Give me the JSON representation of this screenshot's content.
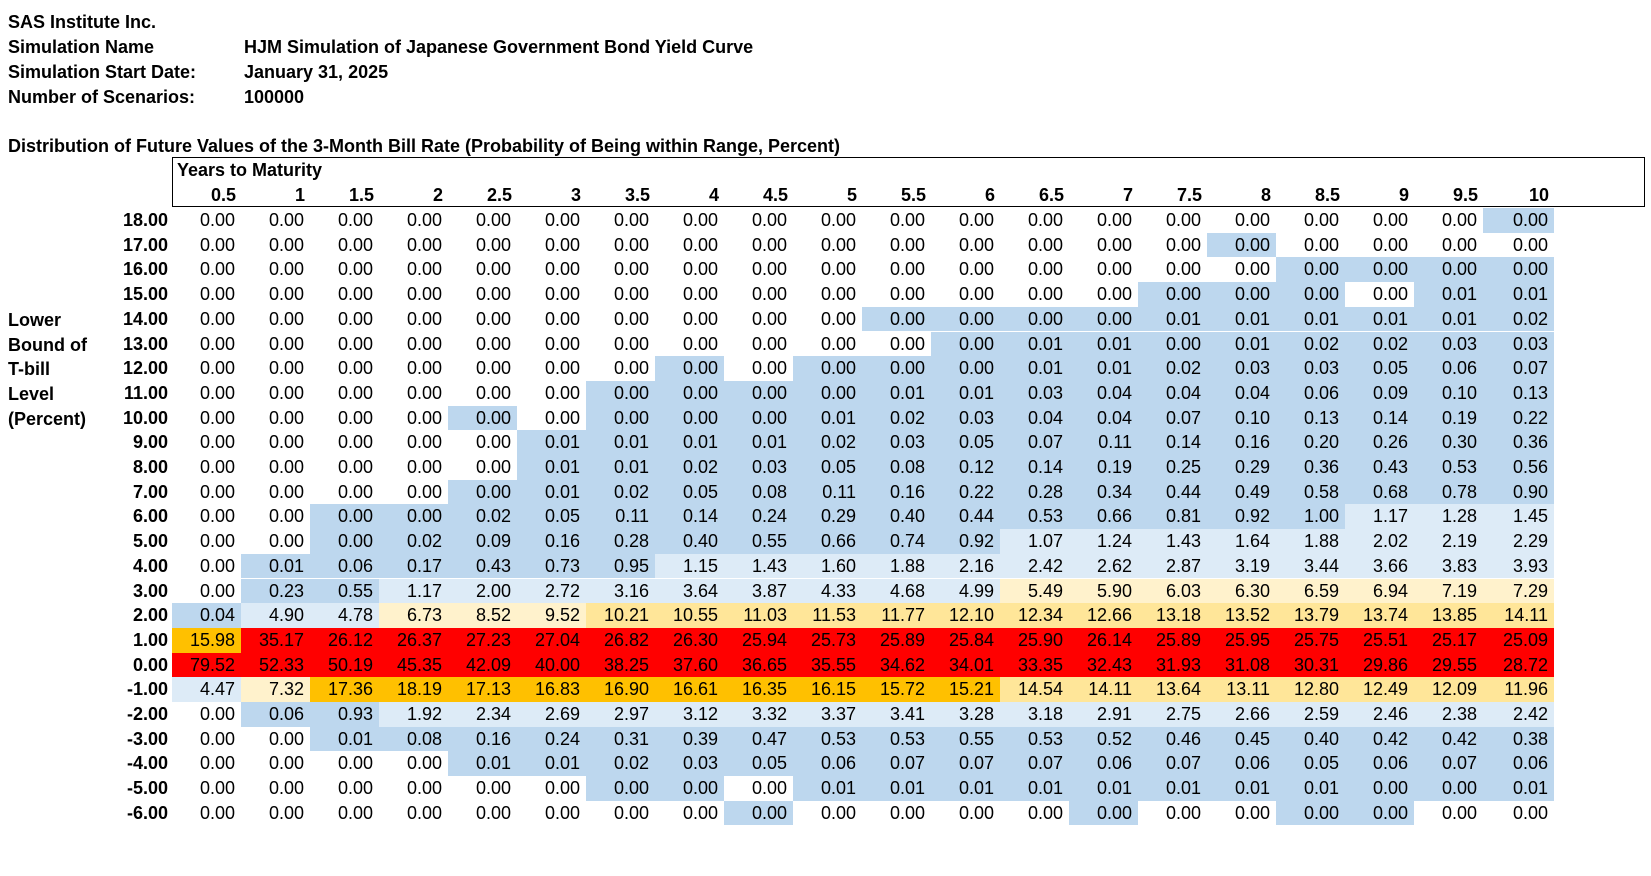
{
  "header": {
    "company": "SAS Institute Inc.",
    "simulation_name_label": "Simulation Name",
    "simulation_name": "HJM Simulation of Japanese Government Bond Yield Curve",
    "start_date_label": "Simulation Start Date:",
    "start_date": "January 31, 2025",
    "scenarios_label": "Number of Scenarios:",
    "scenarios": "100000"
  },
  "table": {
    "title": "Distribution of Future Values of the 3-Month Bill Rate (Probability of Being within Range, Percent)",
    "column_group_label": "Years to Maturity",
    "row_axis_label": [
      "Lower",
      "Bound of",
      "T-bill",
      "Level",
      "(Percent)"
    ],
    "columns": [
      "0.5",
      "1",
      "1.5",
      "2",
      "2.5",
      "3",
      "3.5",
      "4",
      "4.5",
      "5",
      "5.5",
      "6",
      "6.5",
      "7",
      "7.5",
      "8",
      "8.5",
      "9",
      "9.5",
      "10"
    ],
    "rows": [
      {
        "bound": "18.00",
        "values": [
          "0.00",
          "0.00",
          "0.00",
          "0.00",
          "0.00",
          "0.00",
          "0.00",
          "0.00",
          "0.00",
          "0.00",
          "0.00",
          "0.00",
          "0.00",
          "0.00",
          "0.00",
          "0.00",
          "0.00",
          "0.00",
          "0.00",
          "0.00"
        ],
        "tiers": [
          0,
          0,
          0,
          0,
          0,
          0,
          0,
          0,
          0,
          0,
          0,
          0,
          0,
          0,
          0,
          0,
          0,
          0,
          0,
          1
        ]
      },
      {
        "bound": "17.00",
        "values": [
          "0.00",
          "0.00",
          "0.00",
          "0.00",
          "0.00",
          "0.00",
          "0.00",
          "0.00",
          "0.00",
          "0.00",
          "0.00",
          "0.00",
          "0.00",
          "0.00",
          "0.00",
          "0.00",
          "0.00",
          "0.00",
          "0.00",
          "0.00"
        ],
        "tiers": [
          0,
          0,
          0,
          0,
          0,
          0,
          0,
          0,
          0,
          0,
          0,
          0,
          0,
          0,
          0,
          1,
          0,
          0,
          0,
          0
        ]
      },
      {
        "bound": "16.00",
        "values": [
          "0.00",
          "0.00",
          "0.00",
          "0.00",
          "0.00",
          "0.00",
          "0.00",
          "0.00",
          "0.00",
          "0.00",
          "0.00",
          "0.00",
          "0.00",
          "0.00",
          "0.00",
          "0.00",
          "0.00",
          "0.00",
          "0.00",
          "0.00"
        ],
        "tiers": [
          0,
          0,
          0,
          0,
          0,
          0,
          0,
          0,
          0,
          0,
          0,
          0,
          0,
          0,
          0,
          0,
          1,
          1,
          1,
          1
        ]
      },
      {
        "bound": "15.00",
        "values": [
          "0.00",
          "0.00",
          "0.00",
          "0.00",
          "0.00",
          "0.00",
          "0.00",
          "0.00",
          "0.00",
          "0.00",
          "0.00",
          "0.00",
          "0.00",
          "0.00",
          "0.00",
          "0.00",
          "0.00",
          "0.00",
          "0.01",
          "0.01"
        ],
        "tiers": [
          0,
          0,
          0,
          0,
          0,
          0,
          0,
          0,
          0,
          0,
          0,
          0,
          0,
          0,
          1,
          1,
          1,
          0,
          1,
          1
        ]
      },
      {
        "bound": "14.00",
        "values": [
          "0.00",
          "0.00",
          "0.00",
          "0.00",
          "0.00",
          "0.00",
          "0.00",
          "0.00",
          "0.00",
          "0.00",
          "0.00",
          "0.00",
          "0.00",
          "0.00",
          "0.01",
          "0.01",
          "0.01",
          "0.01",
          "0.01",
          "0.02"
        ],
        "tiers": [
          0,
          0,
          0,
          0,
          0,
          0,
          0,
          0,
          0,
          0,
          1,
          1,
          1,
          1,
          1,
          1,
          1,
          1,
          1,
          1
        ]
      },
      {
        "bound": "13.00",
        "values": [
          "0.00",
          "0.00",
          "0.00",
          "0.00",
          "0.00",
          "0.00",
          "0.00",
          "0.00",
          "0.00",
          "0.00",
          "0.00",
          "0.00",
          "0.01",
          "0.01",
          "0.00",
          "0.01",
          "0.02",
          "0.02",
          "0.03",
          "0.03"
        ],
        "tiers": [
          0,
          0,
          0,
          0,
          0,
          0,
          0,
          0,
          0,
          0,
          0,
          1,
          1,
          1,
          1,
          1,
          1,
          1,
          1,
          1
        ]
      },
      {
        "bound": "12.00",
        "values": [
          "0.00",
          "0.00",
          "0.00",
          "0.00",
          "0.00",
          "0.00",
          "0.00",
          "0.00",
          "0.00",
          "0.00",
          "0.00",
          "0.00",
          "0.01",
          "0.01",
          "0.02",
          "0.03",
          "0.03",
          "0.05",
          "0.06",
          "0.07"
        ],
        "tiers": [
          0,
          0,
          0,
          0,
          0,
          0,
          0,
          1,
          0,
          1,
          1,
          1,
          1,
          1,
          1,
          1,
          1,
          1,
          1,
          1
        ]
      },
      {
        "bound": "11.00",
        "values": [
          "0.00",
          "0.00",
          "0.00",
          "0.00",
          "0.00",
          "0.00",
          "0.00",
          "0.00",
          "0.00",
          "0.00",
          "0.01",
          "0.01",
          "0.03",
          "0.04",
          "0.04",
          "0.04",
          "0.06",
          "0.09",
          "0.10",
          "0.13"
        ],
        "tiers": [
          0,
          0,
          0,
          0,
          0,
          0,
          1,
          1,
          1,
          1,
          1,
          1,
          1,
          1,
          1,
          1,
          1,
          1,
          1,
          1
        ]
      },
      {
        "bound": "10.00",
        "values": [
          "0.00",
          "0.00",
          "0.00",
          "0.00",
          "0.00",
          "0.00",
          "0.00",
          "0.00",
          "0.00",
          "0.01",
          "0.02",
          "0.03",
          "0.04",
          "0.04",
          "0.07",
          "0.10",
          "0.13",
          "0.14",
          "0.19",
          "0.22"
        ],
        "tiers": [
          0,
          0,
          0,
          0,
          1,
          0,
          1,
          1,
          1,
          1,
          1,
          1,
          1,
          1,
          1,
          1,
          1,
          1,
          1,
          1
        ]
      },
      {
        "bound": "9.00",
        "values": [
          "0.00",
          "0.00",
          "0.00",
          "0.00",
          "0.00",
          "0.01",
          "0.01",
          "0.01",
          "0.01",
          "0.02",
          "0.03",
          "0.05",
          "0.07",
          "0.11",
          "0.14",
          "0.16",
          "0.20",
          "0.26",
          "0.30",
          "0.36"
        ],
        "tiers": [
          0,
          0,
          0,
          0,
          0,
          1,
          1,
          1,
          1,
          1,
          1,
          1,
          1,
          1,
          1,
          1,
          1,
          1,
          1,
          1
        ]
      },
      {
        "bound": "8.00",
        "values": [
          "0.00",
          "0.00",
          "0.00",
          "0.00",
          "0.00",
          "0.01",
          "0.01",
          "0.02",
          "0.03",
          "0.05",
          "0.08",
          "0.12",
          "0.14",
          "0.19",
          "0.25",
          "0.29",
          "0.36",
          "0.43",
          "0.53",
          "0.56"
        ],
        "tiers": [
          0,
          0,
          0,
          0,
          0,
          1,
          1,
          1,
          1,
          1,
          1,
          1,
          1,
          1,
          1,
          1,
          1,
          1,
          1,
          1
        ]
      },
      {
        "bound": "7.00",
        "values": [
          "0.00",
          "0.00",
          "0.00",
          "0.00",
          "0.00",
          "0.01",
          "0.02",
          "0.05",
          "0.08",
          "0.11",
          "0.16",
          "0.22",
          "0.28",
          "0.34",
          "0.44",
          "0.49",
          "0.58",
          "0.68",
          "0.78",
          "0.90"
        ],
        "tiers": [
          0,
          0,
          0,
          0,
          1,
          1,
          1,
          1,
          1,
          1,
          1,
          1,
          1,
          1,
          1,
          1,
          1,
          1,
          1,
          1
        ]
      },
      {
        "bound": "6.00",
        "values": [
          "0.00",
          "0.00",
          "0.00",
          "0.00",
          "0.02",
          "0.05",
          "0.11",
          "0.14",
          "0.24",
          "0.29",
          "0.40",
          "0.44",
          "0.53",
          "0.66",
          "0.81",
          "0.92",
          "1.00",
          "1.17",
          "1.28",
          "1.45"
        ],
        "tiers": [
          0,
          0,
          1,
          1,
          1,
          1,
          1,
          1,
          1,
          1,
          1,
          1,
          1,
          1,
          1,
          1,
          1,
          2,
          2,
          2
        ]
      },
      {
        "bound": "5.00",
        "values": [
          "0.00",
          "0.00",
          "0.00",
          "0.02",
          "0.09",
          "0.16",
          "0.28",
          "0.40",
          "0.55",
          "0.66",
          "0.74",
          "0.92",
          "1.07",
          "1.24",
          "1.43",
          "1.64",
          "1.88",
          "2.02",
          "2.19",
          "2.29"
        ],
        "tiers": [
          0,
          0,
          1,
          1,
          1,
          1,
          1,
          1,
          1,
          1,
          1,
          1,
          2,
          2,
          2,
          2,
          2,
          2,
          2,
          2
        ]
      },
      {
        "bound": "4.00",
        "values": [
          "0.00",
          "0.01",
          "0.06",
          "0.17",
          "0.43",
          "0.73",
          "0.95",
          "1.15",
          "1.43",
          "1.60",
          "1.88",
          "2.16",
          "2.42",
          "2.62",
          "2.87",
          "3.19",
          "3.44",
          "3.66",
          "3.83",
          "3.93"
        ],
        "tiers": [
          0,
          1,
          1,
          1,
          1,
          1,
          1,
          2,
          2,
          2,
          2,
          2,
          2,
          2,
          2,
          2,
          2,
          2,
          2,
          2
        ]
      },
      {
        "bound": "3.00",
        "values": [
          "0.00",
          "0.23",
          "0.55",
          "1.17",
          "2.00",
          "2.72",
          "3.16",
          "3.64",
          "3.87",
          "4.33",
          "4.68",
          "4.99",
          "5.49",
          "5.90",
          "6.03",
          "6.30",
          "6.59",
          "6.94",
          "7.19",
          "7.29"
        ],
        "tiers": [
          0,
          1,
          1,
          2,
          2,
          2,
          2,
          2,
          2,
          2,
          2,
          2,
          3,
          3,
          3,
          3,
          3,
          3,
          3,
          3
        ]
      },
      {
        "bound": "2.00",
        "values": [
          "0.04",
          "4.90",
          "4.78",
          "6.73",
          "8.52",
          "9.52",
          "10.21",
          "10.55",
          "11.03",
          "11.53",
          "11.77",
          "12.10",
          "12.34",
          "12.66",
          "13.18",
          "13.52",
          "13.79",
          "13.74",
          "13.85",
          "14.11"
        ],
        "tiers": [
          1,
          2,
          2,
          3,
          3,
          3,
          4,
          4,
          4,
          4,
          4,
          4,
          4,
          4,
          4,
          4,
          4,
          4,
          4,
          4
        ]
      },
      {
        "bound": "1.00",
        "values": [
          "15.98",
          "35.17",
          "26.12",
          "26.37",
          "27.23",
          "27.04",
          "26.82",
          "26.30",
          "25.94",
          "25.73",
          "25.89",
          "25.84",
          "25.90",
          "26.14",
          "25.89",
          "25.95",
          "25.75",
          "25.51",
          "25.17",
          "25.09"
        ],
        "tiers": [
          5,
          6,
          6,
          6,
          6,
          6,
          6,
          6,
          6,
          6,
          6,
          6,
          6,
          6,
          6,
          6,
          6,
          6,
          6,
          6
        ]
      },
      {
        "bound": "0.00",
        "values": [
          "79.52",
          "52.33",
          "50.19",
          "45.35",
          "42.09",
          "40.00",
          "38.25",
          "37.60",
          "36.65",
          "35.55",
          "34.62",
          "34.01",
          "33.35",
          "32.43",
          "31.93",
          "31.08",
          "30.31",
          "29.86",
          "29.55",
          "28.72"
        ],
        "tiers": [
          6,
          6,
          6,
          6,
          6,
          6,
          6,
          6,
          6,
          6,
          6,
          6,
          6,
          6,
          6,
          6,
          6,
          6,
          6,
          6
        ]
      },
      {
        "bound": "-1.00",
        "values": [
          "4.47",
          "7.32",
          "17.36",
          "18.19",
          "17.13",
          "16.83",
          "16.90",
          "16.61",
          "16.35",
          "16.15",
          "15.72",
          "15.21",
          "14.54",
          "14.11",
          "13.64",
          "13.11",
          "12.80",
          "12.49",
          "12.09",
          "11.96"
        ],
        "tiers": [
          2,
          3,
          5,
          5,
          5,
          5,
          5,
          5,
          5,
          5,
          5,
          5,
          4,
          4,
          4,
          4,
          4,
          4,
          4,
          4
        ]
      },
      {
        "bound": "-2.00",
        "values": [
          "0.00",
          "0.06",
          "0.93",
          "1.92",
          "2.34",
          "2.69",
          "2.97",
          "3.12",
          "3.32",
          "3.37",
          "3.41",
          "3.28",
          "3.18",
          "2.91",
          "2.75",
          "2.66",
          "2.59",
          "2.46",
          "2.38",
          "2.42"
        ],
        "tiers": [
          0,
          1,
          1,
          2,
          2,
          2,
          2,
          2,
          2,
          2,
          2,
          2,
          2,
          2,
          2,
          2,
          2,
          2,
          2,
          2
        ]
      },
      {
        "bound": "-3.00",
        "values": [
          "0.00",
          "0.00",
          "0.01",
          "0.08",
          "0.16",
          "0.24",
          "0.31",
          "0.39",
          "0.47",
          "0.53",
          "0.53",
          "0.55",
          "0.53",
          "0.52",
          "0.46",
          "0.45",
          "0.40",
          "0.42",
          "0.42",
          "0.38"
        ],
        "tiers": [
          0,
          0,
          1,
          1,
          1,
          1,
          1,
          1,
          1,
          1,
          1,
          1,
          1,
          1,
          1,
          1,
          1,
          1,
          1,
          1
        ]
      },
      {
        "bound": "-4.00",
        "values": [
          "0.00",
          "0.00",
          "0.00",
          "0.00",
          "0.01",
          "0.01",
          "0.02",
          "0.03",
          "0.05",
          "0.06",
          "0.07",
          "0.07",
          "0.07",
          "0.06",
          "0.07",
          "0.06",
          "0.05",
          "0.06",
          "0.07",
          "0.06"
        ],
        "tiers": [
          0,
          0,
          0,
          0,
          1,
          1,
          1,
          1,
          1,
          1,
          1,
          1,
          1,
          1,
          1,
          1,
          1,
          1,
          1,
          1
        ]
      },
      {
        "bound": "-5.00",
        "values": [
          "0.00",
          "0.00",
          "0.00",
          "0.00",
          "0.00",
          "0.00",
          "0.00",
          "0.00",
          "0.00",
          "0.01",
          "0.01",
          "0.01",
          "0.01",
          "0.01",
          "0.01",
          "0.01",
          "0.01",
          "0.00",
          "0.00",
          "0.01"
        ],
        "tiers": [
          0,
          0,
          0,
          0,
          0,
          0,
          1,
          1,
          0,
          1,
          1,
          1,
          1,
          1,
          1,
          1,
          1,
          1,
          1,
          1
        ]
      },
      {
        "bound": "-6.00",
        "values": [
          "0.00",
          "0.00",
          "0.00",
          "0.00",
          "0.00",
          "0.00",
          "0.00",
          "0.00",
          "0.00",
          "0.00",
          "0.00",
          "0.00",
          "0.00",
          "0.00",
          "0.00",
          "0.00",
          "0.00",
          "0.00",
          "0.00",
          "0.00"
        ],
        "tiers": [
          0,
          0,
          0,
          0,
          0,
          0,
          0,
          0,
          1,
          0,
          0,
          0,
          0,
          1,
          0,
          0,
          1,
          1,
          0,
          0
        ]
      }
    ]
  },
  "colors": {
    "tier0": "#ffffff",
    "tier1": "#bdd7ee",
    "tier2": "#ddebf7",
    "tier3": "#fff2cc",
    "tier4": "#ffe699",
    "tier5": "#ffc000",
    "tier6": "#ff0000"
  }
}
